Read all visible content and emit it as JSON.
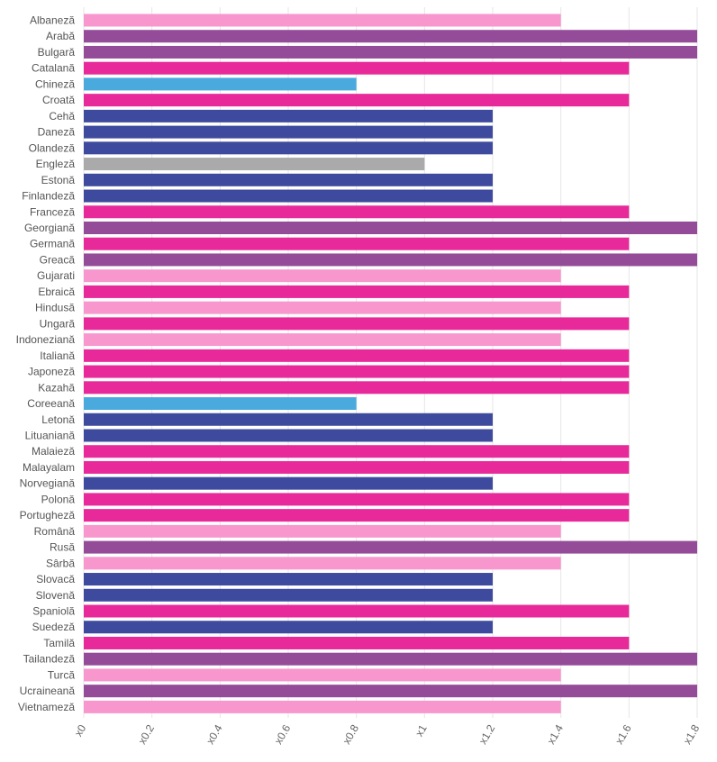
{
  "chart_data": {
    "type": "bar",
    "orientation": "horizontal",
    "categories": [
      "Albaneză",
      "Arabă",
      "Bulgară",
      "Catalană",
      "Chineză",
      "Croată",
      "Cehă",
      "Daneză",
      "Olandeză",
      "Engleză",
      "Estonă",
      "Finlandeză",
      "Franceză",
      "Georgiană",
      "Germană",
      "Greacă",
      "Gujarati",
      "Ebraică",
      "Hindusă",
      "Ungară",
      "Indoneziană",
      "Italiană",
      "Japoneză",
      "Kazahă",
      "Coreeană",
      "Letonă",
      "Lituaniană",
      "Malaieză",
      "Malayalam",
      "Norvegiană",
      "Polonă",
      "Portugheză",
      "Română",
      "Rusă",
      "Sârbă",
      "Slovacă",
      "Slovenă",
      "Spaniolă",
      "Suedeză",
      "Tamilă",
      "Tailandeză",
      "Turcă",
      "Ucraineană",
      "Vietnameză"
    ],
    "values": [
      1.4,
      1.8,
      1.8,
      1.6,
      0.8,
      1.6,
      1.2,
      1.2,
      1.2,
      1.0,
      1.2,
      1.2,
      1.6,
      1.8,
      1.6,
      1.8,
      1.4,
      1.6,
      1.4,
      1.6,
      1.4,
      1.6,
      1.6,
      1.6,
      0.8,
      1.2,
      1.2,
      1.6,
      1.6,
      1.2,
      1.6,
      1.6,
      1.4,
      1.8,
      1.4,
      1.2,
      1.2,
      1.6,
      1.2,
      1.6,
      1.8,
      1.4,
      1.8,
      1.4
    ],
    "xlim": [
      0,
      1.8
    ],
    "x_ticks": [
      0,
      0.2,
      0.4,
      0.6,
      0.8,
      1,
      1.2,
      1.4,
      1.6,
      1.8
    ],
    "x_tick_labels": [
      "x0",
      "x0.2",
      "x0.4",
      "x0.6",
      "x0.8",
      "x1",
      "x1.2",
      "x1.4",
      "x1.6",
      "x1.8"
    ],
    "grid": true,
    "legend": "none",
    "title": "",
    "xlabel": "",
    "ylabel": "",
    "colors": {
      "0.8": "#4aaadd",
      "1": "#aaaaaa",
      "1.2": "#3e4a9e",
      "1.4": "#f797cd",
      "1.6": "#e8299a",
      "1.8": "#944b98"
    }
  }
}
